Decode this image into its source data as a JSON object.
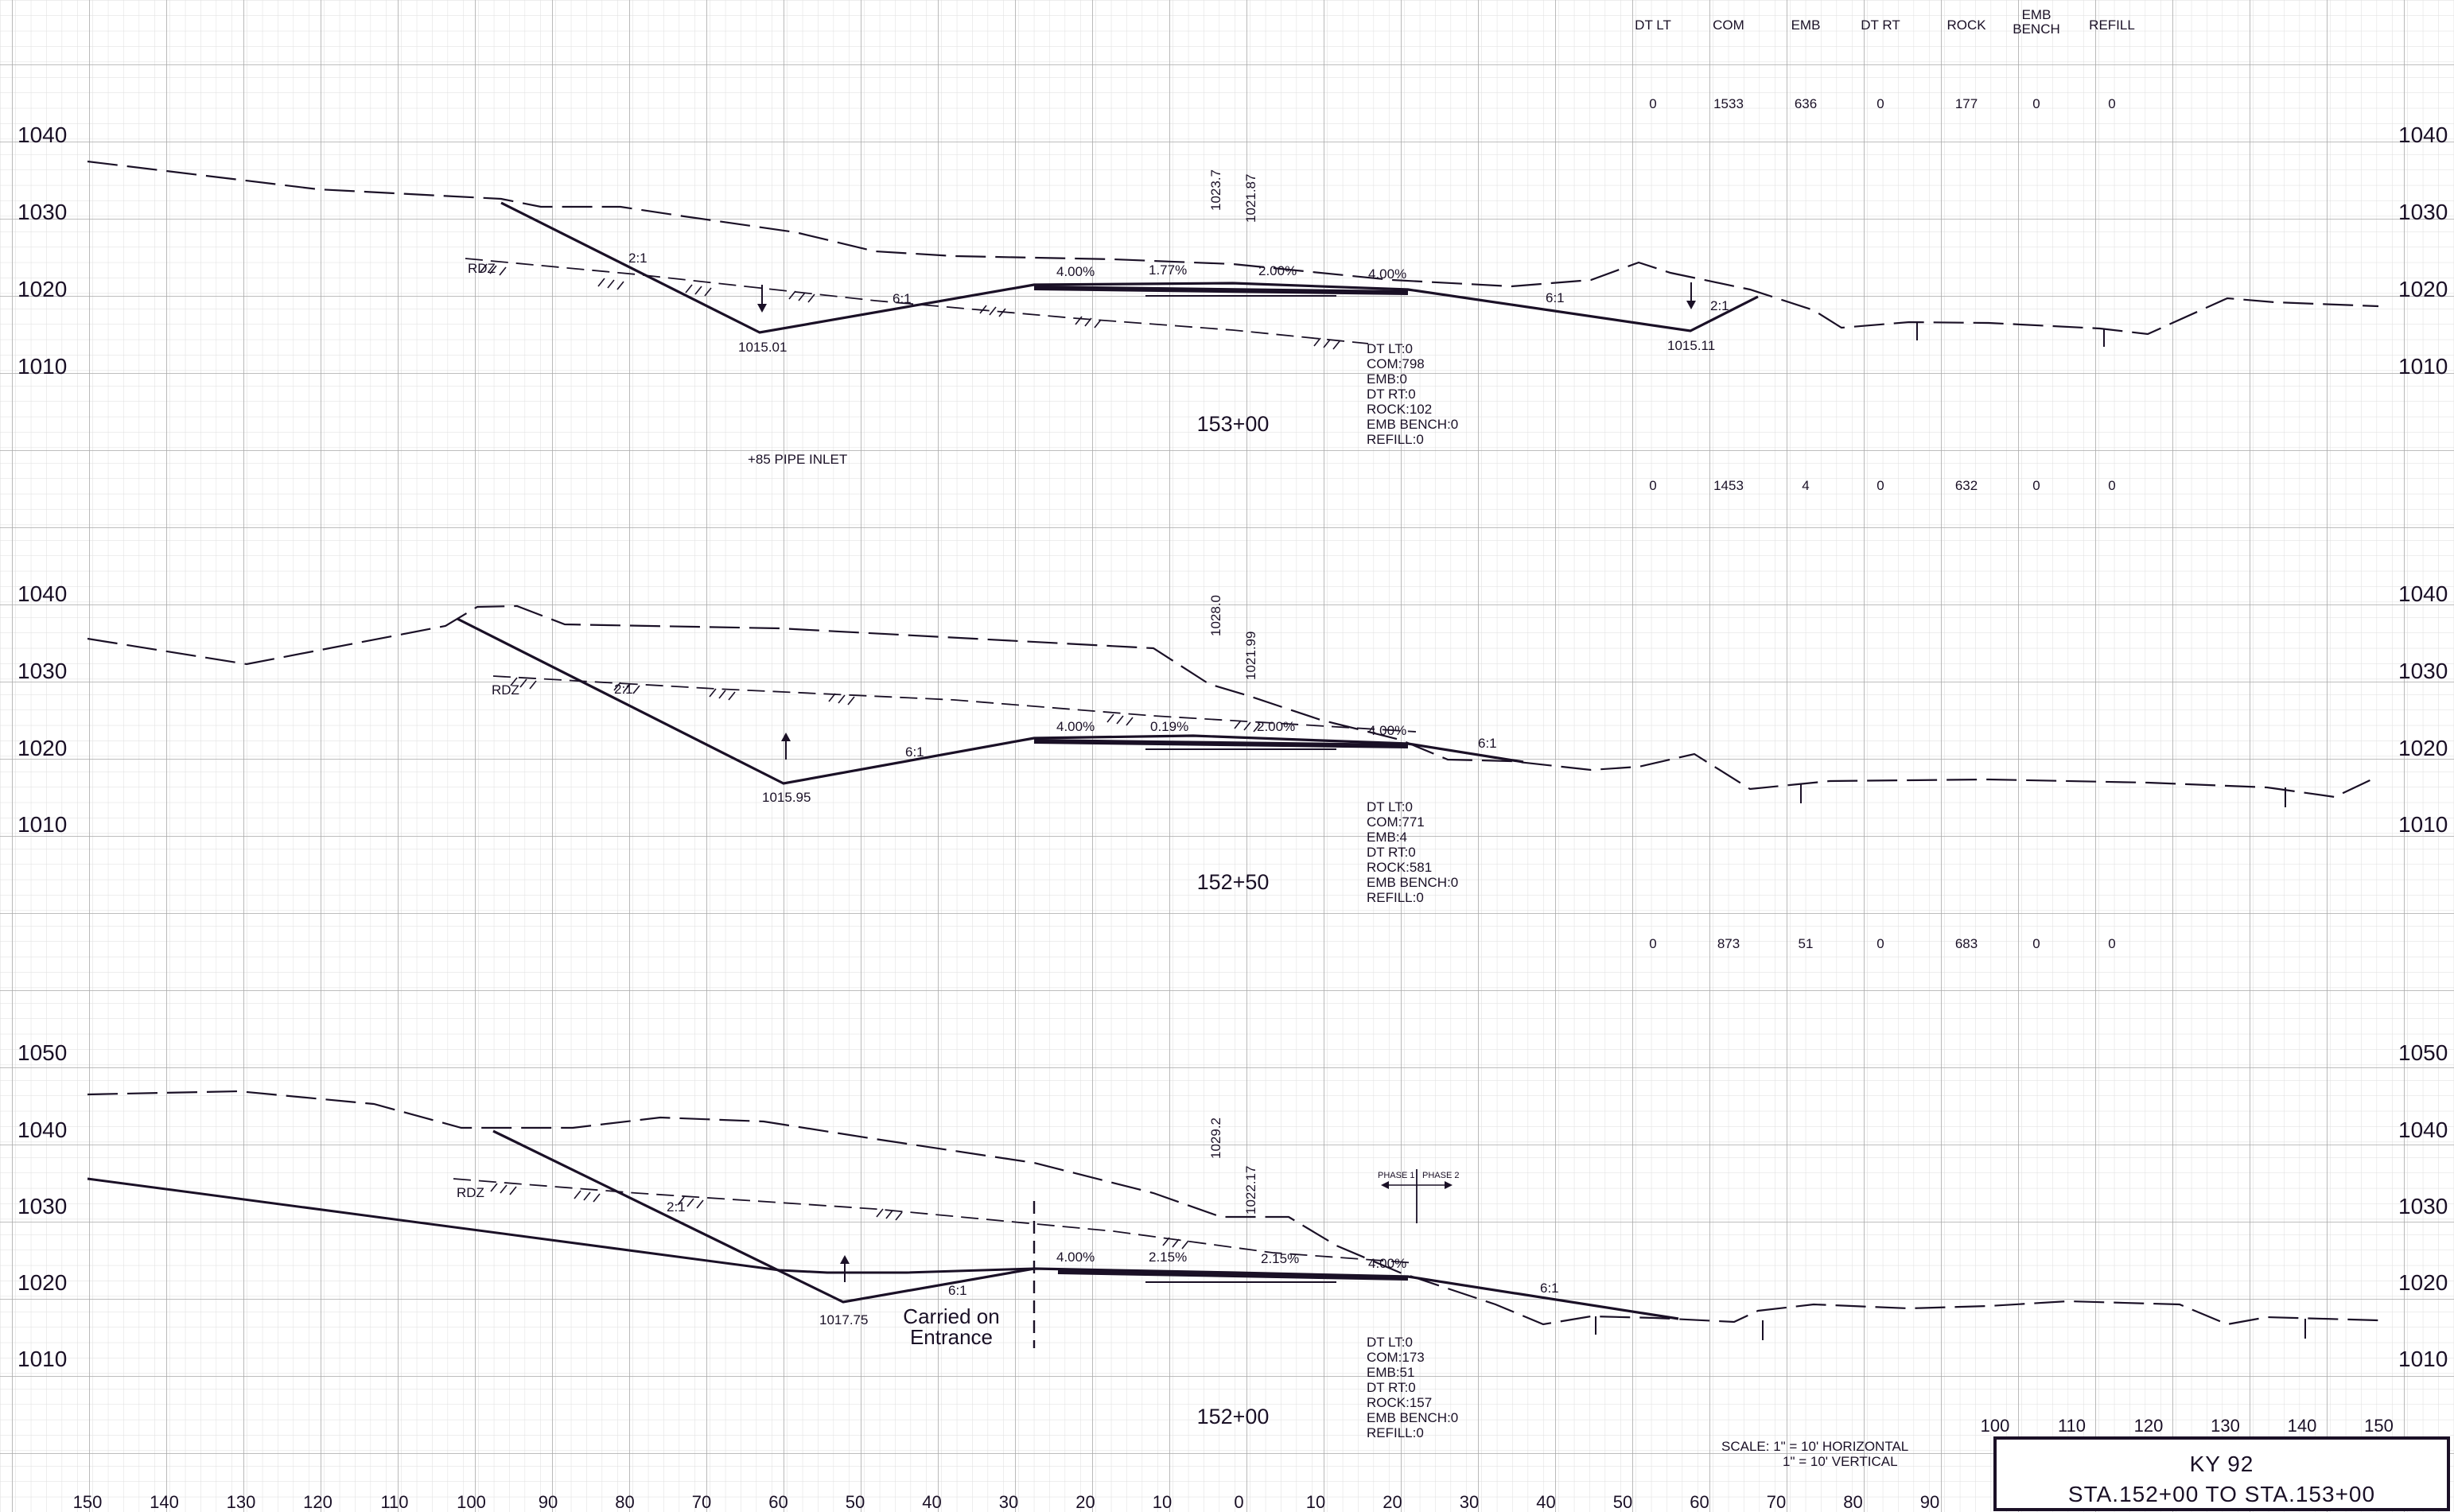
{
  "quantity_headers": [
    "DT LT",
    "COM",
    "EMB",
    "DT RT",
    "ROCK",
    "EMB BENCH",
    "REFILL"
  ],
  "sections": [
    {
      "station": "153+00",
      "quantities": [
        "0",
        "1533",
        "636",
        "0",
        "177",
        "0",
        "0"
      ],
      "elevations": [
        "1040",
        "1030",
        "1020",
        "1010"
      ],
      "vertical_labels": [
        "1023.7",
        "1021.87"
      ],
      "grades": [
        "4.00%",
        "1.77%",
        "2.00%",
        "4.00%"
      ],
      "slopes": [
        "2:1",
        "6:1",
        "6:1",
        "2:1"
      ],
      "rdz": "RDZ",
      "ditch_left": "1015.01",
      "ditch_right": "1015.11",
      "note": "+85 PIPE INLET",
      "summary": [
        "DT LT:0",
        "COM:798",
        "EMB:0",
        "DT RT:0",
        "ROCK:102",
        "EMB BENCH:0",
        "REFILL:0"
      ]
    },
    {
      "station": "152+50",
      "quantities": [
        "0",
        "1453",
        "4",
        "0",
        "632",
        "0",
        "0"
      ],
      "elevations": [
        "1040",
        "1030",
        "1020",
        "1010"
      ],
      "vertical_labels": [
        "1028.0",
        "1021.99"
      ],
      "grades": [
        "4.00%",
        "0.19%",
        "2.00%",
        "4.00%"
      ],
      "slopes": [
        "2:1",
        "6:1",
        "6:1"
      ],
      "rdz": "RDZ",
      "ditch_left": "1015.95",
      "summary": [
        "DT LT:0",
        "COM:771",
        "EMB:4",
        "DT RT:0",
        "ROCK:581",
        "EMB BENCH:0",
        "REFILL:0"
      ]
    },
    {
      "station": "152+00",
      "quantities": [
        "0",
        "873",
        "51",
        "0",
        "683",
        "0",
        "0"
      ],
      "elevations": [
        "1050",
        "1040",
        "1030",
        "1020",
        "1010"
      ],
      "vertical_labels": [
        "1029.2",
        "1022.17"
      ],
      "grades": [
        "4.00%",
        "2.15%",
        "2.15%",
        "4.00%"
      ],
      "slopes": [
        "2:1",
        "6:1",
        "6:1"
      ],
      "rdz": "RDZ",
      "ditch_left": "1017.75",
      "carried_on": [
        "Carried on",
        "Entrance"
      ],
      "phase_labels": [
        "PHASE 1",
        "PHASE 2"
      ],
      "summary": [
        "DT LT:0",
        "COM:173",
        "EMB:51",
        "DT RT:0",
        "ROCK:157",
        "EMB BENCH:0",
        "REFILL:0"
      ]
    }
  ],
  "x_axis_labels": [
    "150",
    "140",
    "130",
    "120",
    "110",
    "100",
    "90",
    "80",
    "70",
    "60",
    "50",
    "40",
    "30",
    "20",
    "10",
    "0",
    "10",
    "20",
    "30",
    "40",
    "50",
    "60",
    "70",
    "80",
    "90"
  ],
  "x_axis_labels_right": [
    "100",
    "110",
    "120",
    "130",
    "140",
    "150"
  ],
  "scale_note": [
    "SCALE: 1\" = 10' HORIZONTAL",
    "1\" = 10' VERTICAL"
  ],
  "title_block": {
    "route": "KY 92",
    "stations": "STA.152+00 TO STA.153+00"
  },
  "colors": {
    "ink": "#1a1026",
    "grid_minor": "#dcdcdc",
    "grid_major": "#a8a8a8"
  }
}
